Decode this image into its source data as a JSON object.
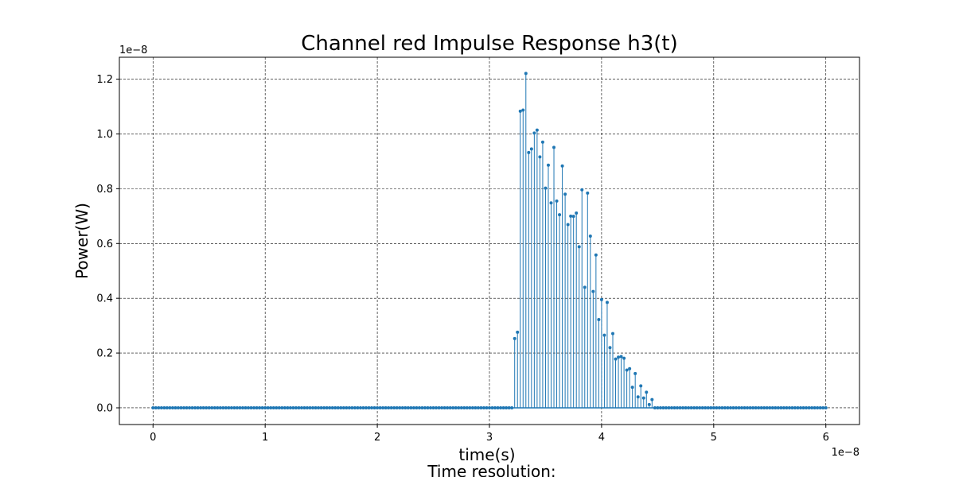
{
  "chart_data": {
    "type": "stem",
    "title": "Channel red Impulse Response h3(t)",
    "xlabel": "time(s)",
    "ylabel": "Power(W)",
    "x_offset_label": "1e−8",
    "y_offset_label": "1e−8",
    "footer_text": "Time resolution:",
    "xlim": [
      -0.3,
      6.3
    ],
    "ylim": [
      -0.061,
      1.28
    ],
    "xticks": [
      0,
      1,
      2,
      3,
      4,
      5,
      6
    ],
    "xtick_labels": [
      "0",
      "1",
      "2",
      "3",
      "4",
      "5",
      "6"
    ],
    "yticks": [
      0.0,
      0.2,
      0.4,
      0.6,
      0.8,
      1.0,
      1.2
    ],
    "ytick_labels": [
      "0.0",
      "0.2",
      "0.4",
      "0.6",
      "0.8",
      "1.0",
      "1.2"
    ],
    "grid": true,
    "color": "#1f77b4",
    "x_range": [
      0,
      6
    ],
    "x_step": 0.025,
    "nonzero_x_start": 3.225,
    "nonzero_values": [
      0.253,
      0.276,
      1.083,
      1.087,
      1.221,
      0.932,
      0.945,
      1.003,
      1.014,
      0.916,
      0.97,
      0.802,
      0.886,
      0.748,
      0.951,
      0.755,
      0.705,
      0.883,
      0.78,
      0.669,
      0.7,
      0.699,
      0.711,
      0.588,
      0.796,
      0.44,
      0.784,
      0.627,
      0.425,
      0.558,
      0.322,
      0.395,
      0.265,
      0.385,
      0.22,
      0.271,
      0.178,
      0.185,
      0.187,
      0.181,
      0.138,
      0.143,
      0.075,
      0.125,
      0.04,
      0.08,
      0.036,
      0.057,
      0.012,
      0.03
    ]
  }
}
